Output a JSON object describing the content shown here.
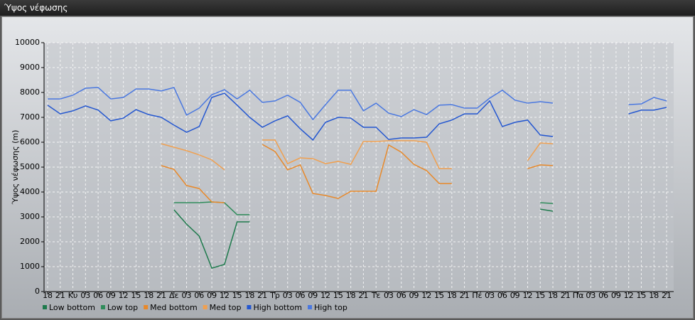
{
  "window_title": "Ύψος νέφωσης",
  "chart_data": {
    "type": "line",
    "y_label": "Ύψος νέφωσης (m)",
    "categories": [
      "18",
      "21",
      "Κυ",
      "03",
      "06",
      "09",
      "12",
      "15",
      "18",
      "21",
      "Δε",
      "03",
      "06",
      "09",
      "12",
      "15",
      "18",
      "21",
      "Τρ",
      "03",
      "06",
      "09",
      "12",
      "15",
      "18",
      "21",
      "Τε",
      "03",
      "06",
      "09",
      "12",
      "15",
      "18",
      "21",
      "Πέ",
      "03",
      "06",
      "09",
      "12",
      "15",
      "18",
      "21",
      "Πα",
      "03",
      "06",
      "09",
      "12",
      "15",
      "18",
      "21"
    ],
    "ylim": [
      0,
      10000
    ],
    "yticks": [
      0,
      1000,
      2000,
      3000,
      4000,
      5000,
      6000,
      7000,
      8000,
      9000,
      10000
    ],
    "grid": true,
    "series": [
      {
        "name": "Low bottom",
        "color": "#1e7a4c",
        "values": [
          null,
          null,
          null,
          null,
          null,
          null,
          null,
          null,
          null,
          null,
          3290,
          2710,
          2230,
          940,
          1090,
          2800,
          2800,
          null,
          null,
          null,
          null,
          null,
          null,
          null,
          null,
          null,
          null,
          null,
          null,
          null,
          null,
          null,
          null,
          null,
          null,
          null,
          null,
          null,
          null,
          3310,
          3230,
          null,
          null,
          null,
          null,
          null,
          null,
          null,
          null,
          null
        ]
      },
      {
        "name": "Low top",
        "color": "#2f8c5a",
        "values": [
          null,
          null,
          null,
          null,
          null,
          null,
          null,
          null,
          null,
          null,
          3570,
          3570,
          3570,
          3600,
          3570,
          3090,
          3090,
          null,
          null,
          null,
          null,
          null,
          null,
          null,
          null,
          null,
          null,
          null,
          null,
          null,
          null,
          null,
          null,
          null,
          null,
          null,
          null,
          null,
          null,
          3570,
          3540,
          null,
          null,
          null,
          null,
          null,
          null,
          null,
          null,
          null
        ]
      },
      {
        "name": "Med bottom",
        "color": "#e8892a",
        "values": [
          null,
          null,
          null,
          null,
          null,
          null,
          null,
          null,
          null,
          5060,
          4910,
          4260,
          4140,
          3600,
          3570,
          null,
          null,
          5910,
          5630,
          4890,
          5090,
          3940,
          3860,
          3740,
          4030,
          4030,
          4030,
          5890,
          5600,
          5110,
          4860,
          4340,
          4340,
          null,
          null,
          null,
          null,
          null,
          4940,
          5090,
          5060,
          null,
          null,
          null,
          null,
          null,
          null,
          null,
          null,
          null
        ]
      },
      {
        "name": "Med top",
        "color": "#f0a050",
        "values": [
          null,
          null,
          null,
          null,
          null,
          null,
          null,
          null,
          null,
          5940,
          5800,
          5660,
          5490,
          5290,
          4890,
          null,
          null,
          6090,
          6090,
          5140,
          5370,
          5340,
          5140,
          5230,
          5110,
          6030,
          6030,
          6060,
          6060,
          6060,
          6000,
          4940,
          4940,
          null,
          null,
          null,
          null,
          null,
          5260,
          5970,
          5940,
          null,
          null,
          null,
          null,
          null,
          null,
          null,
          null,
          null
        ]
      },
      {
        "name": "High bottom",
        "color": "#2457d0",
        "values": [
          7490,
          7140,
          7260,
          7460,
          7290,
          6860,
          6970,
          7310,
          7110,
          7000,
          6690,
          6400,
          6630,
          7800,
          7970,
          7490,
          7000,
          6600,
          6860,
          7060,
          6540,
          6090,
          6800,
          7000,
          6970,
          6600,
          6600,
          6110,
          6170,
          6170,
          6200,
          6740,
          6890,
          7140,
          7140,
          7660,
          6630,
          6800,
          6890,
          6290,
          6230,
          null,
          null,
          null,
          null,
          null,
          7140,
          7290,
          7290,
          7400
        ]
      },
      {
        "name": "High top",
        "color": "#4a78e0",
        "values": [
          7740,
          7740,
          7890,
          8170,
          8200,
          7740,
          7800,
          8140,
          8140,
          8060,
          8200,
          7090,
          7370,
          7910,
          8110,
          7740,
          8090,
          7600,
          7660,
          7890,
          7600,
          6910,
          7510,
          8090,
          8090,
          7260,
          7570,
          7170,
          7030,
          7310,
          7110,
          7490,
          7510,
          7370,
          7370,
          7770,
          8090,
          7690,
          7570,
          7630,
          7570,
          null,
          null,
          null,
          null,
          null,
          7510,
          7540,
          7800,
          7660
        ]
      }
    ]
  }
}
